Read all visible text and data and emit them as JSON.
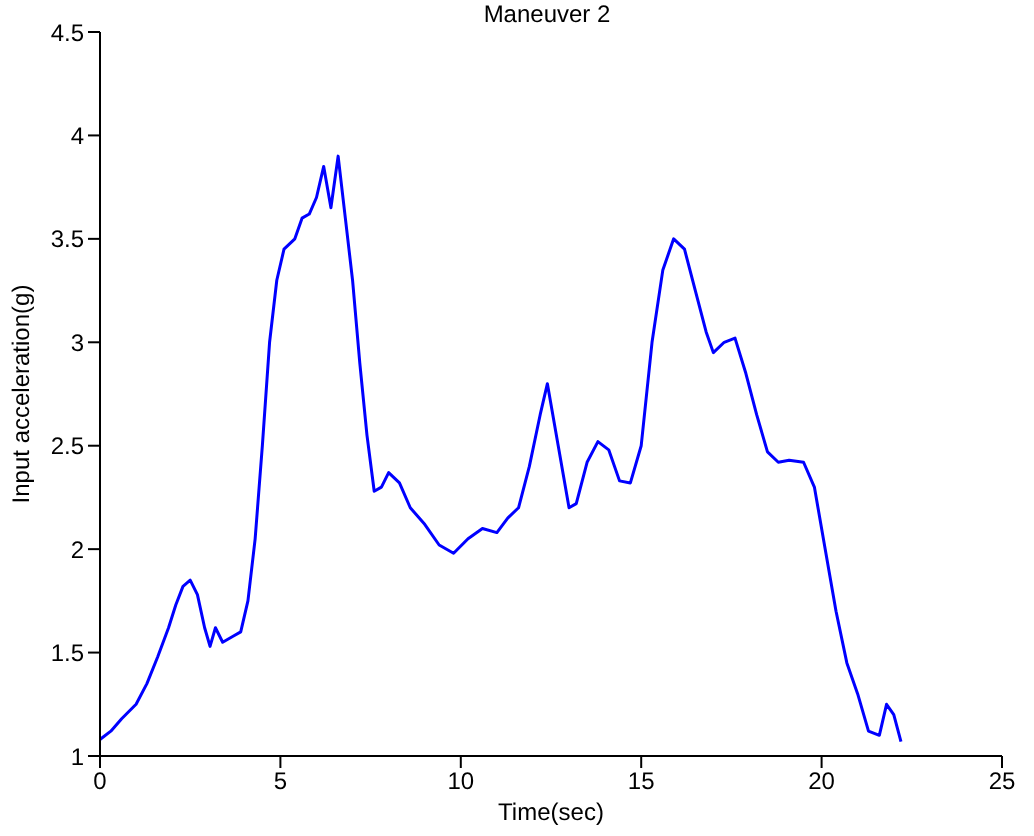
{
  "chart_data": {
    "type": "line",
    "title": "Maneuver 2",
    "xlabel": "Time(sec)",
    "ylabel": "Input acceleration(g)",
    "x": [
      0,
      0.3,
      0.6,
      1.0,
      1.3,
      1.6,
      1.9,
      2.1,
      2.3,
      2.5,
      2.7,
      2.9,
      3.05,
      3.2,
      3.4,
      3.7,
      3.9,
      4.1,
      4.3,
      4.5,
      4.7,
      4.9,
      5.1,
      5.4,
      5.6,
      5.8,
      6.0,
      6.2,
      6.4,
      6.6,
      6.8,
      7.0,
      7.2,
      7.4,
      7.6,
      7.8,
      8.0,
      8.3,
      8.6,
      9.0,
      9.4,
      9.8,
      10.2,
      10.6,
      11.0,
      11.3,
      11.6,
      11.9,
      12.2,
      12.4,
      12.7,
      13.0,
      13.2,
      13.5,
      13.8,
      14.1,
      14.4,
      14.7,
      15.0,
      15.3,
      15.6,
      15.9,
      16.2,
      16.5,
      16.8,
      17.0,
      17.3,
      17.6,
      17.9,
      18.2,
      18.5,
      18.8,
      19.1,
      19.5,
      19.8,
      20.1,
      20.4,
      20.7,
      21.0,
      21.3,
      21.6,
      21.8,
      22.0,
      22.2
    ],
    "series": [
      {
        "color": "#0000ff",
        "values": [
          1.08,
          1.12,
          1.18,
          1.25,
          1.35,
          1.48,
          1.62,
          1.73,
          1.82,
          1.85,
          1.78,
          1.62,
          1.53,
          1.62,
          1.55,
          1.58,
          1.6,
          1.75,
          2.05,
          2.5,
          3.0,
          3.3,
          3.45,
          3.5,
          3.6,
          3.62,
          3.7,
          3.85,
          3.65,
          3.9,
          3.6,
          3.3,
          2.9,
          2.55,
          2.28,
          2.3,
          2.37,
          2.32,
          2.2,
          2.12,
          2.02,
          1.98,
          2.05,
          2.1,
          2.08,
          2.15,
          2.2,
          2.4,
          2.65,
          2.8,
          2.5,
          2.2,
          2.22,
          2.42,
          2.52,
          2.48,
          2.33,
          2.32,
          2.5,
          3.0,
          3.35,
          3.5,
          3.45,
          3.25,
          3.05,
          2.95,
          3.0,
          3.02,
          2.85,
          2.65,
          2.47,
          2.42,
          2.43,
          2.42,
          2.3,
          2.0,
          1.7,
          1.45,
          1.3,
          1.12,
          1.1,
          1.25,
          1.2,
          1.07
        ]
      }
    ],
    "xlim": [
      0,
      25
    ],
    "xticks": [
      0,
      5,
      10,
      15,
      20,
      25
    ],
    "ylim": [
      1,
      4.5
    ],
    "yticks": [
      1,
      1.5,
      2,
      2.5,
      3,
      3.5,
      4,
      4.5
    ],
    "grid": false,
    "legend": false
  }
}
